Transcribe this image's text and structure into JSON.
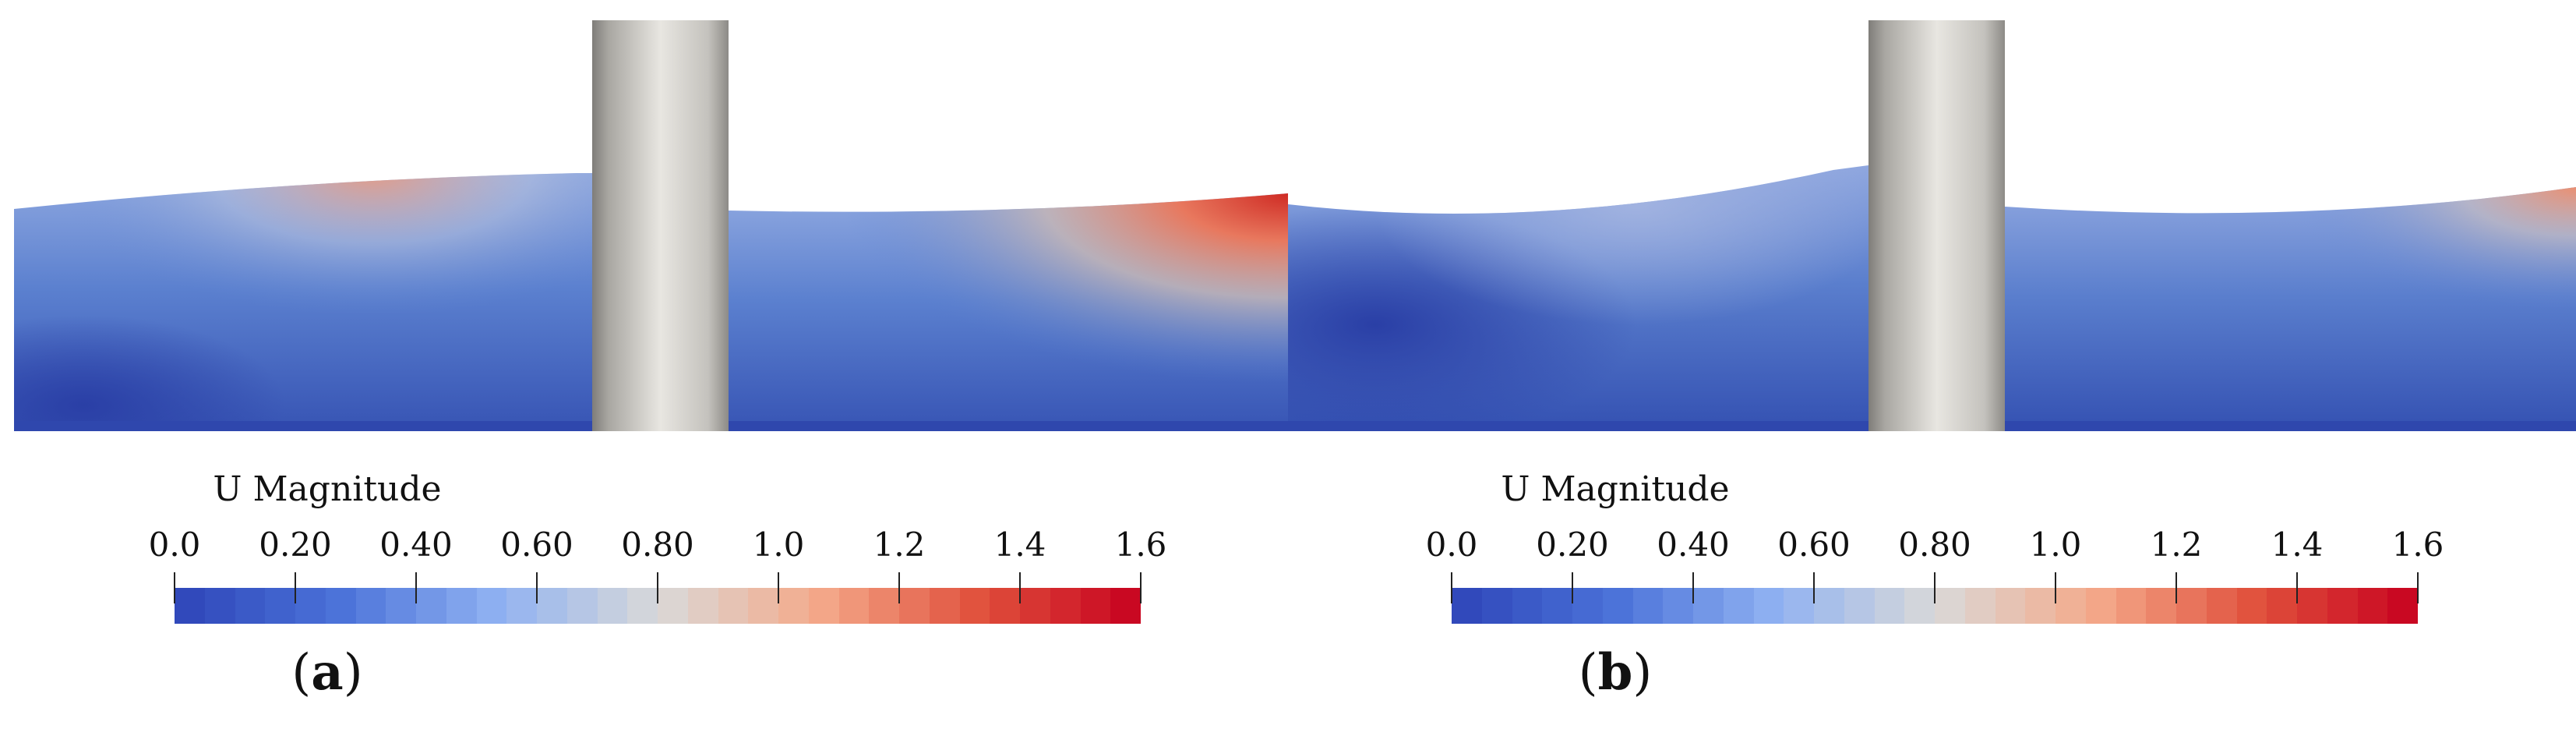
{
  "colors": {
    "stops": [
      "#2e45b8",
      "#4a71d8",
      "#8fb1f2",
      "#d9d9d9",
      "#f4a98a",
      "#e0503c",
      "#c7001f"
    ],
    "cylinder_light": "#e6e4df",
    "cylinder_dark": "#8a8884"
  },
  "panels": [
    {
      "id": "a",
      "label_open": "(",
      "label_letter": "a",
      "label_close": ")",
      "colorbar": {
        "title": "U Magnitude",
        "range": [
          0.0,
          1.6
        ],
        "ticks": [
          "0.0",
          "0.20",
          "0.40",
          "0.60",
          "0.80",
          "1.0",
          "1.2",
          "1.4",
          "1.6"
        ]
      }
    },
    {
      "id": "b",
      "label_open": "(",
      "label_letter": "b",
      "label_close": ")",
      "colorbar": {
        "title": "U Magnitude",
        "range": [
          0.0,
          1.6
        ],
        "ticks": [
          "0.0",
          "0.20",
          "0.40",
          "0.60",
          "0.80",
          "1.0",
          "1.2",
          "1.4",
          "1.6"
        ]
      }
    }
  ]
}
